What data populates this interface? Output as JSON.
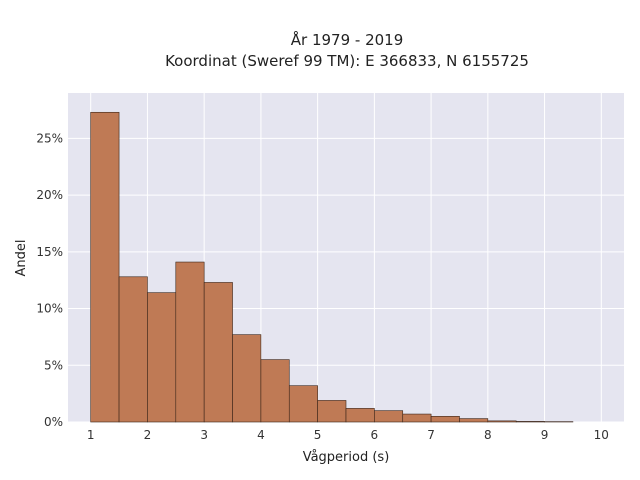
{
  "chart_data": {
    "type": "bar",
    "title_lines": [
      "År 1979 - 2019",
      "Koordinat (Sweref 99 TM): E 366833, N 6155725"
    ],
    "xlabel": "Vågperiod (s)",
    "ylabel": "Andel",
    "xlim": [
      0.6,
      10.4
    ],
    "ylim": [
      0,
      0.29
    ],
    "x_ticks": [
      1,
      2,
      3,
      4,
      5,
      6,
      7,
      8,
      9,
      10
    ],
    "x_tick_labels": [
      "1",
      "2",
      "3",
      "4",
      "5",
      "6",
      "7",
      "8",
      "9",
      "10"
    ],
    "y_ticks": [
      0,
      0.05,
      0.1,
      0.15,
      0.2,
      0.25
    ],
    "y_tick_labels": [
      "0%",
      "5%",
      "10%",
      "15%",
      "20%",
      "25%"
    ],
    "bin_width": 0.5,
    "bins": [
      {
        "x0": 1.0,
        "x1": 1.5,
        "value": 0.273
      },
      {
        "x0": 1.5,
        "x1": 2.0,
        "value": 0.128
      },
      {
        "x0": 2.0,
        "x1": 2.5,
        "value": 0.114
      },
      {
        "x0": 2.5,
        "x1": 3.0,
        "value": 0.141
      },
      {
        "x0": 3.0,
        "x1": 3.5,
        "value": 0.123
      },
      {
        "x0": 3.5,
        "x1": 4.0,
        "value": 0.077
      },
      {
        "x0": 4.0,
        "x1": 4.5,
        "value": 0.055
      },
      {
        "x0": 4.5,
        "x1": 5.0,
        "value": 0.032
      },
      {
        "x0": 5.0,
        "x1": 5.5,
        "value": 0.019
      },
      {
        "x0": 5.5,
        "x1": 6.0,
        "value": 0.012
      },
      {
        "x0": 6.0,
        "x1": 6.5,
        "value": 0.01
      },
      {
        "x0": 6.5,
        "x1": 7.0,
        "value": 0.007
      },
      {
        "x0": 7.0,
        "x1": 7.5,
        "value": 0.005
      },
      {
        "x0": 7.5,
        "x1": 8.0,
        "value": 0.003
      },
      {
        "x0": 8.0,
        "x1": 8.5,
        "value": 0.001
      },
      {
        "x0": 8.5,
        "x1": 9.0,
        "value": 0.0005
      },
      {
        "x0": 9.0,
        "x1": 9.5,
        "value": 0.0003
      }
    ],
    "grid": true,
    "colors": {
      "bar_fill": "#bf7a55",
      "bar_stroke": "#3a2418",
      "plot_background": "#e5e5f0",
      "grid": "#ffffff"
    }
  }
}
